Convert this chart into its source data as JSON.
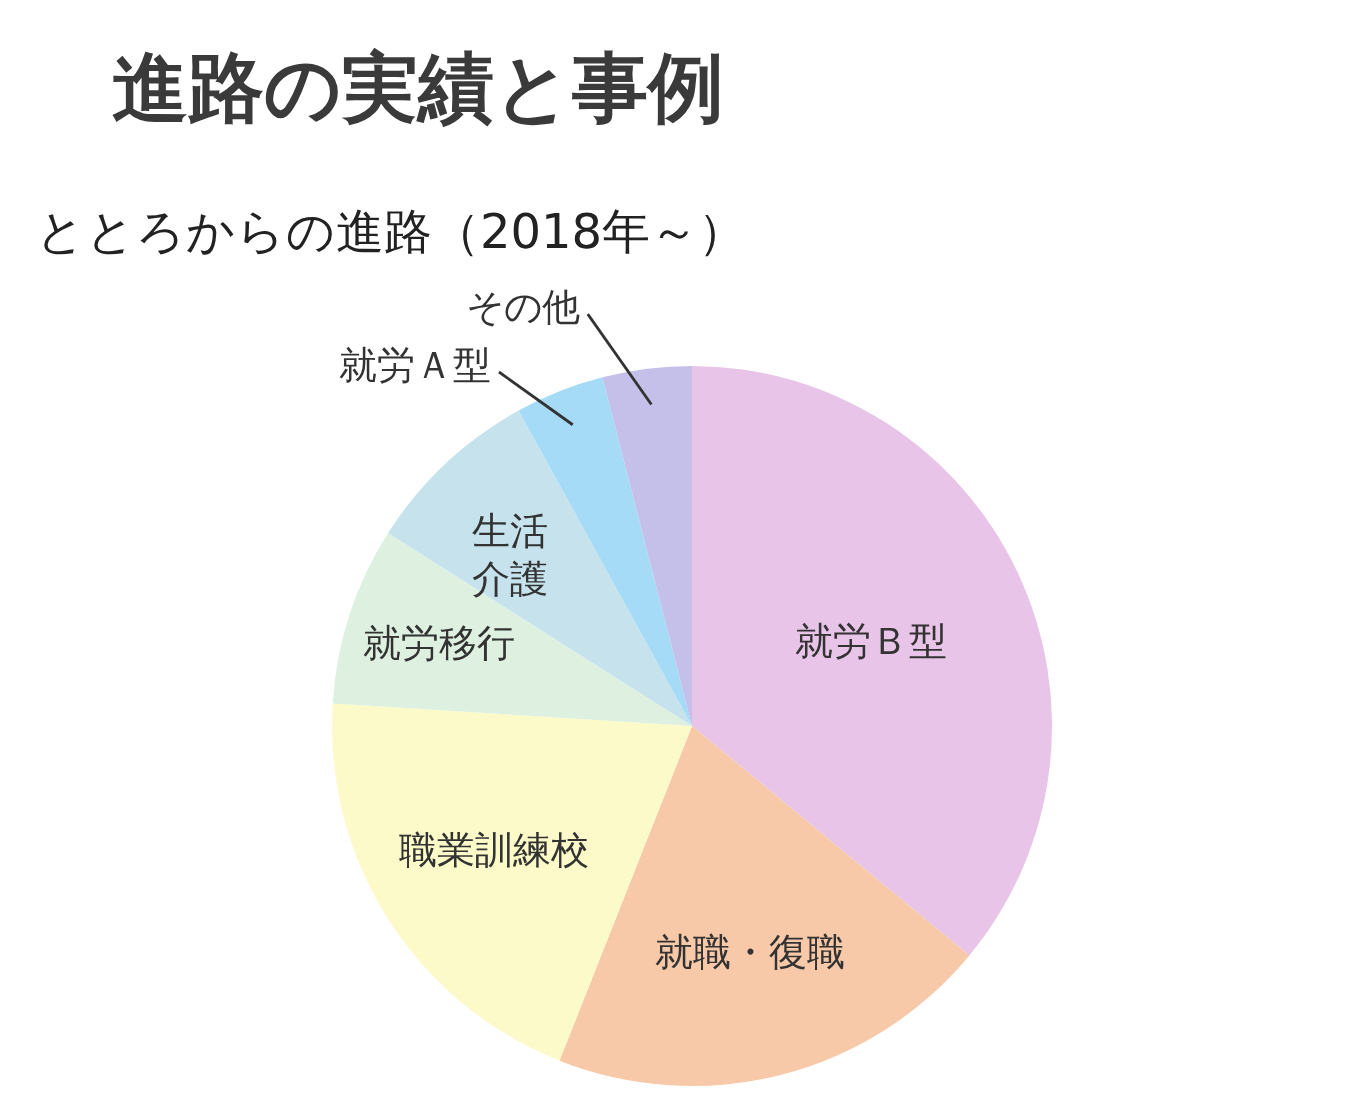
{
  "chart_data": {
    "type": "pie",
    "title": "進路の実績と事例",
    "subtitle": "ととろからの進路（2018年～）",
    "categories": [
      "就労Ｂ型",
      "就職・復職",
      "職業訓練校",
      "就労移行",
      "生活介護",
      "就労Ａ型",
      "その他"
    ],
    "values": [
      36,
      20,
      20,
      8,
      8,
      4,
      4
    ],
    "colors": [
      "#e8c4e8",
      "#f8c9a8",
      "#fcfac8",
      "#def1e1",
      "#c6e3ed",
      "#a6dbf7",
      "#c4c0ea"
    ]
  }
}
